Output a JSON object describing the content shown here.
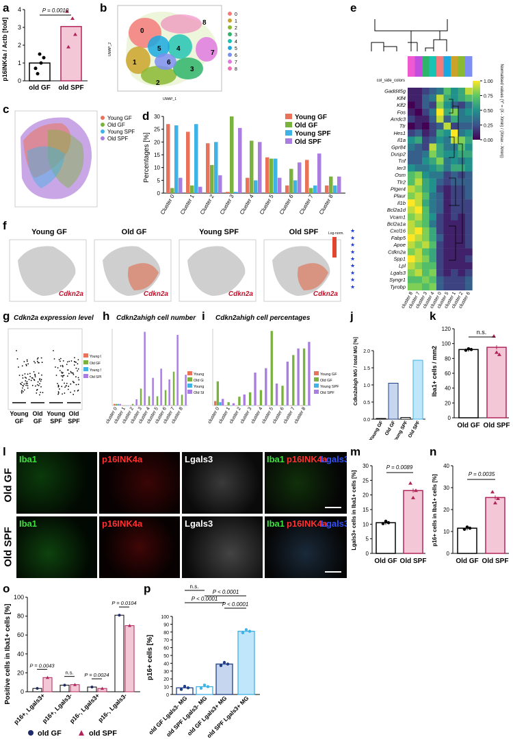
{
  "panel_labels": {
    "a": "a",
    "b": "b",
    "c": "c",
    "d": "d",
    "e": "e",
    "f": "f",
    "g": "g",
    "h": "h",
    "i": "i",
    "j": "j",
    "k": "k",
    "l": "l",
    "m": "m",
    "n": "n",
    "o": "o",
    "p": "p"
  },
  "colors": {
    "old_gf": "#1f1f1f",
    "old_spf": "#b0245a",
    "young_gf": "#e8735a",
    "old_gf_series": "#79b33e",
    "young_spf": "#3fb2e6",
    "old_spf_series": "#a97ee0"
  },
  "panel_a": {
    "ylabel": "p16INK4a / Actb [fold]",
    "pval": "P = 0.0010",
    "ticks": [
      "0",
      "1",
      "2",
      "3",
      "4"
    ],
    "groups": [
      "old GF",
      "old SPF"
    ],
    "chart_data": {
      "type": "bar",
      "categories": [
        "old GF",
        "old SPF"
      ],
      "values": [
        1.0,
        3.05
      ],
      "ylim": [
        0,
        4
      ]
    }
  },
  "panel_b": {
    "xlabel": "UMAP_1",
    "ylabel": "UMAP_2",
    "cluster_labels": [
      "0",
      "1",
      "2",
      "3",
      "4",
      "5",
      "6",
      "7",
      "8"
    ],
    "legend": [
      "0",
      "1",
      "2",
      "3",
      "4",
      "5",
      "6",
      "7",
      "8"
    ]
  },
  "panel_c": {
    "legend": [
      "Young GF",
      "Old GF",
      "Young SPF",
      "Old SPF"
    ]
  },
  "panel_d": {
    "ylabel": "Percentages [%]",
    "ticks": [
      "0",
      "5",
      "10",
      "15",
      "20",
      "25",
      "30"
    ],
    "legend": [
      "Young GF",
      "Old GF",
      "Young SPF",
      "Old SPF"
    ],
    "chart_data": {
      "type": "bar",
      "categories": [
        "Cluster 0",
        "Cluster 1",
        "Cluster 2",
        "Cluster 3",
        "Cluster 4",
        "Cluster 5",
        "Cluster 6",
        "Cluster 7",
        "Cluster 8"
      ],
      "series": [
        {
          "name": "Young GF",
          "values": [
            27,
            24,
            19.5,
            0.5,
            6,
            14,
            3,
            13,
            3
          ]
        },
        {
          "name": "Old GF",
          "values": [
            2,
            3,
            11,
            30,
            20.5,
            13.5,
            9.5,
            2,
            6.5
          ]
        },
        {
          "name": "Young SPF",
          "values": [
            26.5,
            27,
            20,
            0.5,
            5,
            13.5,
            5,
            3,
            3
          ]
        },
        {
          "name": "Old SPF",
          "values": [
            6,
            2.5,
            7,
            25.5,
            20,
            6,
            12,
            15.5,
            6.5
          ]
        }
      ],
      "ylim": [
        0,
        30
      ]
    }
  },
  "panel_e": {
    "col_side_label": "col_side_colors",
    "genes": [
      "Gadd45g",
      "Klf4",
      "Klf2",
      "Fos",
      "Arrdc3",
      "Ttr",
      "Hes1",
      "Il1a",
      "Gpr84",
      "Dusp2",
      "Tnf",
      "Ier3",
      "Osm",
      "Tlr2",
      "Ptger4",
      "Plaur",
      "Il1b",
      "Bcl2a1d",
      "Vcam1",
      "Bcl2a1a",
      "Cxcl16",
      "Fabp5",
      "Apoe",
      "Cdkn2a",
      "Spp1",
      "Lpl",
      "Lgals3",
      "Syngr1",
      "Tyrobp"
    ],
    "starred": [
      "Cxcl16",
      "Fabp5",
      "Apoe",
      "Cdkn2a",
      "Spp1",
      "Lpl",
      "Lgals3",
      "Syngr1",
      "Tyrobp"
    ],
    "clusters": [
      "cluster 8",
      "cluster 7",
      "cluster 3",
      "cluster 4",
      "cluster 0",
      "cluster 5",
      "cluster 1",
      "cluster 2",
      "cluster 6"
    ],
    "colorbar_title": "Normalised values (Y' = (X - Xmin) / (Xmax - Xmin))",
    "colorbar_ticks": [
      "1.00",
      "0.75",
      "0.50",
      "0.25",
      "0.00"
    ],
    "star": "★"
  },
  "panel_f": {
    "titles": [
      "Young GF",
      "Old GF",
      "Young SPF",
      "Old SPF"
    ],
    "gene": "Cdkn2a",
    "scale_label": "Log-norm."
  },
  "panel_g": {
    "title": "Cdkn2a expression level",
    "groups": [
      "Young GF",
      "Old GF",
      "Young SPF",
      "Old SPF"
    ],
    "legend": [
      "Young GF",
      "Old GF",
      "Young SPF",
      "Old SPF"
    ]
  },
  "panel_h": {
    "title": "Cdkn2ahigh cell number",
    "legend": [
      "Young GF",
      "Old GF",
      "Young SPF",
      "Old SPF"
    ],
    "chart_data": {
      "type": "bar",
      "categories": [
        "cluster 0",
        "cluster 1",
        "cluster 2",
        "cluster 3",
        "cluster 4",
        "cluster 5",
        "cluster 6",
        "cluster 7",
        "cluster 8"
      ],
      "series": [
        {
          "name": "Young GF",
          "values": [
            1,
            0,
            0,
            0,
            0,
            0,
            0,
            0,
            0
          ]
        },
        {
          "name": "Old GF",
          "values": [
            1,
            0,
            1,
            11,
            6,
            6,
            10,
            22,
            7
          ]
        },
        {
          "name": "Young SPF",
          "values": [
            1,
            0,
            0,
            0,
            0,
            0,
            0,
            0,
            0
          ]
        },
        {
          "name": "Old SPF",
          "values": [
            1,
            0,
            4,
            48,
            18,
            24,
            17,
            46,
            20
          ]
        }
      ],
      "ylim": [
        0,
        50
      ]
    }
  },
  "panel_i": {
    "title": "Cdkn2ahigh cell percentages",
    "legend": [
      "Young GF",
      "Old GF",
      "Young SPF",
      "Old SPF"
    ],
    "chart_data": {
      "type": "bar",
      "categories": [
        "cluster 0",
        "cluster 1",
        "cluster 2",
        "cluster 3",
        "cluster 4",
        "cluster 5",
        "cluster 6",
        "cluster 7",
        "cluster 8"
      ],
      "series": [
        {
          "name": "Young GF",
          "values": [
            0.2,
            0,
            0,
            0,
            0,
            0,
            0,
            0,
            0
          ]
        },
        {
          "name": "Old GF",
          "values": [
            1.1,
            0.15,
            0.4,
            0.6,
            0.7,
            3.4,
            0.9,
            2.3,
            2.6
          ]
        },
        {
          "name": "Young SPF",
          "values": [
            0.15,
            0,
            0,
            0,
            0,
            0,
            0,
            0,
            0
          ]
        },
        {
          "name": "Old SPF",
          "values": [
            0.3,
            0.1,
            0.5,
            1.5,
            1.7,
            1.0,
            2.0,
            2.6,
            2.9
          ]
        }
      ],
      "ylim": [
        0,
        3.5
      ]
    }
  },
  "panel_j": {
    "ylabel": "Cdkn2ahigh MG / total MG [%]",
    "ticks": [
      "0.0",
      "0.5",
      "1.0",
      "1.5",
      "2.0"
    ],
    "chart_data": {
      "type": "bar",
      "categories": [
        "Young GF",
        "Old GF",
        "Young SPF",
        "Old SPF"
      ],
      "values": [
        0.02,
        1.05,
        0.05,
        1.72
      ],
      "ylim": [
        0,
        2
      ]
    }
  },
  "panel_k": {
    "ylabel": "Iba1+ cells / mm2",
    "ticks": [
      "0",
      "20",
      "40",
      "60",
      "80",
      "100",
      "120"
    ],
    "sig": "n.s.",
    "groups": [
      "Old GF",
      "Old SPF"
    ],
    "chart_data": {
      "type": "bar",
      "categories": [
        "Old GF",
        "Old SPF"
      ],
      "values": [
        92,
        95
      ],
      "ylim": [
        0,
        120
      ]
    }
  },
  "panel_l": {
    "rows": [
      "Old GF",
      "Old SPF"
    ],
    "channels": [
      "Iba1",
      "p16INK4a",
      "Lgals3"
    ],
    "merge": [
      "Iba1",
      "p16INK4a",
      "Lgals3"
    ]
  },
  "panel_m": {
    "ylabel": "Lgals3+ cells in Iba1+ cells [%]",
    "ticks": [
      "0",
      "5",
      "10",
      "15",
      "20",
      "25",
      "30"
    ],
    "pval": "P = 0.0089",
    "groups": [
      "Old GF",
      "Old SPF"
    ],
    "chart_data": {
      "type": "bar",
      "categories": [
        "Old GF",
        "Old SPF"
      ],
      "values": [
        10.5,
        21.5
      ],
      "ylim": [
        0,
        30
      ]
    }
  },
  "panel_n": {
    "ylabel": "p16+ cells in Iba1+ cells [%]",
    "ticks": [
      "0",
      "10",
      "20",
      "30",
      "40"
    ],
    "pval": "P = 0.0035",
    "groups": [
      "Old GF",
      "Old SPF"
    ],
    "chart_data": {
      "type": "bar",
      "categories": [
        "Old GF",
        "Old SPF"
      ],
      "values": [
        11.5,
        25.5
      ],
      "ylim": [
        0,
        40
      ]
    }
  },
  "panel_o": {
    "ylabel": "Positive cells in Iba1+ cells [%]",
    "ticks": [
      "0",
      "20",
      "40",
      "60",
      "80",
      "100"
    ],
    "pvals": [
      "P = 0.0043",
      "n.s.",
      "P = 0.0024",
      "P = 0.0104"
    ],
    "legend": [
      "old GF",
      "old SPF"
    ],
    "chart_data": {
      "type": "bar",
      "categories": [
        "p16+, Lgals3+",
        "p16+, Lgals3-",
        "p16-, Lgals3+",
        "p16-, Lgals3-"
      ],
      "series": [
        {
          "name": "old GF",
          "values": [
            3.5,
            7,
            5,
            81
          ]
        },
        {
          "name": "old SPF",
          "values": [
            15,
            7.5,
            3.5,
            70
          ]
        }
      ],
      "ylim": [
        0,
        100
      ]
    }
  },
  "panel_p": {
    "ylabel": "p16+ cells [%]",
    "ticks": [
      "0",
      "10",
      "20",
      "30",
      "40",
      "50",
      "60",
      "70",
      "80",
      "90",
      "100"
    ],
    "comparisons": [
      "n.s.",
      "P < 0.0001",
      "P < 0.0001",
      "P < 0.0001"
    ],
    "chart_data": {
      "type": "bar",
      "categories": [
        "old GF Lgals3- MG",
        "old SPF Lgals3- MG",
        "old GF Lgals3+ MG",
        "old SPF Lgals3+ MG"
      ],
      "values": [
        8.5,
        10,
        39,
        81
      ],
      "ylim": [
        0,
        100
      ]
    }
  }
}
